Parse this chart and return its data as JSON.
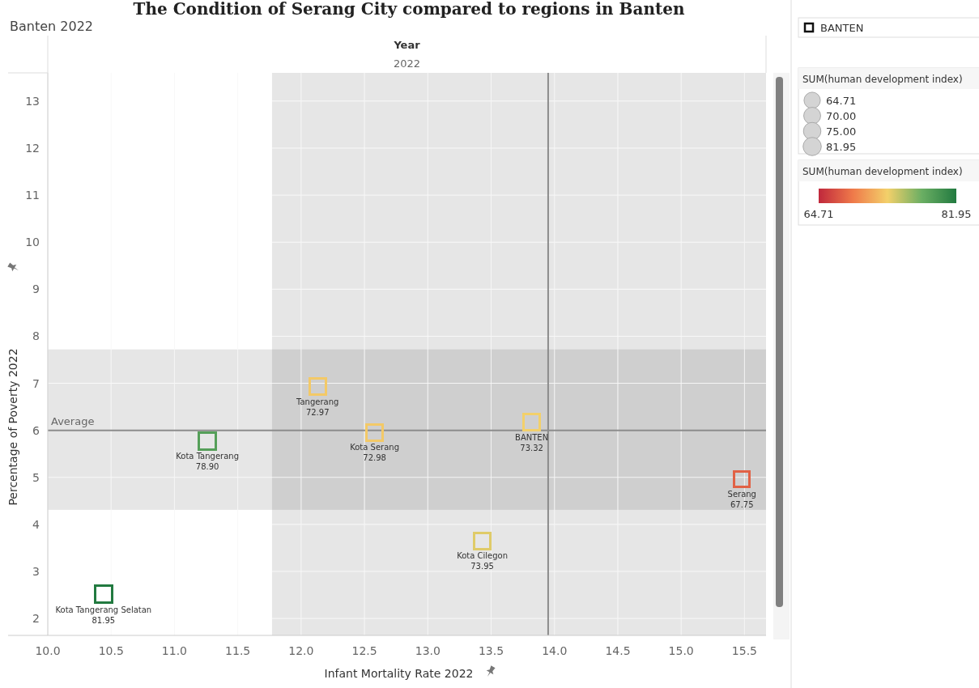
{
  "chart_data": {
    "type": "bubble",
    "title": "The Condition of Serang City compared to regions in Banten",
    "subtitle": "Banten 2022",
    "xlabel": "Infant Mortality Rate 2022",
    "ylabel": "Percentage of Poverty 2022",
    "legend_title": "SUM(human development index)",
    "clabel": "SUM(human development index)",
    "series": [
      {
        "x": [
          10.44,
          11.26,
          12.13,
          12.58,
          13.82,
          13.43,
          15.48
        ],
        "values": [
          2.51,
          5.77,
          6.93,
          5.95,
          6.17,
          3.65,
          4.96
        ],
        "sizes": [
          81.95,
          78.9,
          72.97,
          72.98,
          73.32,
          73.95,
          67.75
        ],
        "cvalues": [
          81.95,
          78.9,
          72.97,
          72.98,
          73.32,
          73.95,
          67.75
        ],
        "value_labels": [
          "81.95",
          "78.90",
          "72.97",
          "72.98",
          "73.32",
          "73.95",
          "67.75"
        ]
      }
    ],
    "xlim": [
      10.0,
      15.67
    ],
    "xticks": [
      {
        "value": 10,
        "label": "10.0"
      },
      10.5,
      {
        "value": 11,
        "label": "11.0"
      },
      11.5,
      {
        "value": 12,
        "label": "12.0"
      },
      12.5,
      {
        "value": 13,
        "label": "13.0"
      },
      13.5,
      {
        "value": 14,
        "label": "14.0"
      },
      14.5,
      {
        "value": 15,
        "label": "15.0"
      },
      15.5
    ],
    "ylim": [
      1.64,
      13.6
    ],
    "yticks": [
      2,
      3,
      4,
      5,
      6,
      7,
      8,
      9,
      10,
      11,
      12,
      13
    ],
    "ref_lines": [
      {
        "axis": "x",
        "value": 13.95,
        "color": "#8c8c8c"
      },
      {
        "axis": "y",
        "value": 6.0,
        "label": "Average",
        "color": "#8c8c8c"
      }
    ],
    "bands": [
      {
        "axis": "x",
        "from": 11.77,
        "to": 15.67,
        "color": "#e6e6e6"
      },
      {
        "axis": "y",
        "from": 4.31,
        "to": 7.72,
        "color": "#e6e6e6"
      }
    ],
    "clim": [
      64.71,
      81.95
    ],
    "cticks": [
      64.71,
      81.95
    ],
    "size_legend": [
      64.71,
      {
        "value": 70,
        "label": "70.00"
      },
      {
        "value": 75,
        "label": "75.00"
      },
      81.95
    ],
    "marker": "square",
    "grid": true,
    "annotations": [
      "Year",
      "2022",
      "BANTEN",
      {
        "text": "Kota Tangerang Selatan",
        "x": 10.44,
        "y": 2.51
      },
      {
        "text": "Kota Tangerang",
        "x": 11.26,
        "y": 5.77
      },
      {
        "text": "Tangerang",
        "x": 12.13,
        "y": 6.93
      },
      {
        "text": "Kota Serang",
        "x": 12.58,
        "y": 5.95
      },
      {
        "text": "BANTEN",
        "x": 13.82,
        "y": 6.17
      },
      {
        "text": "Kota Cilegon",
        "x": 13.43,
        "y": 3.65
      },
      {
        "text": "Serang",
        "x": 15.48,
        "y": 4.96
      }
    ]
  }
}
